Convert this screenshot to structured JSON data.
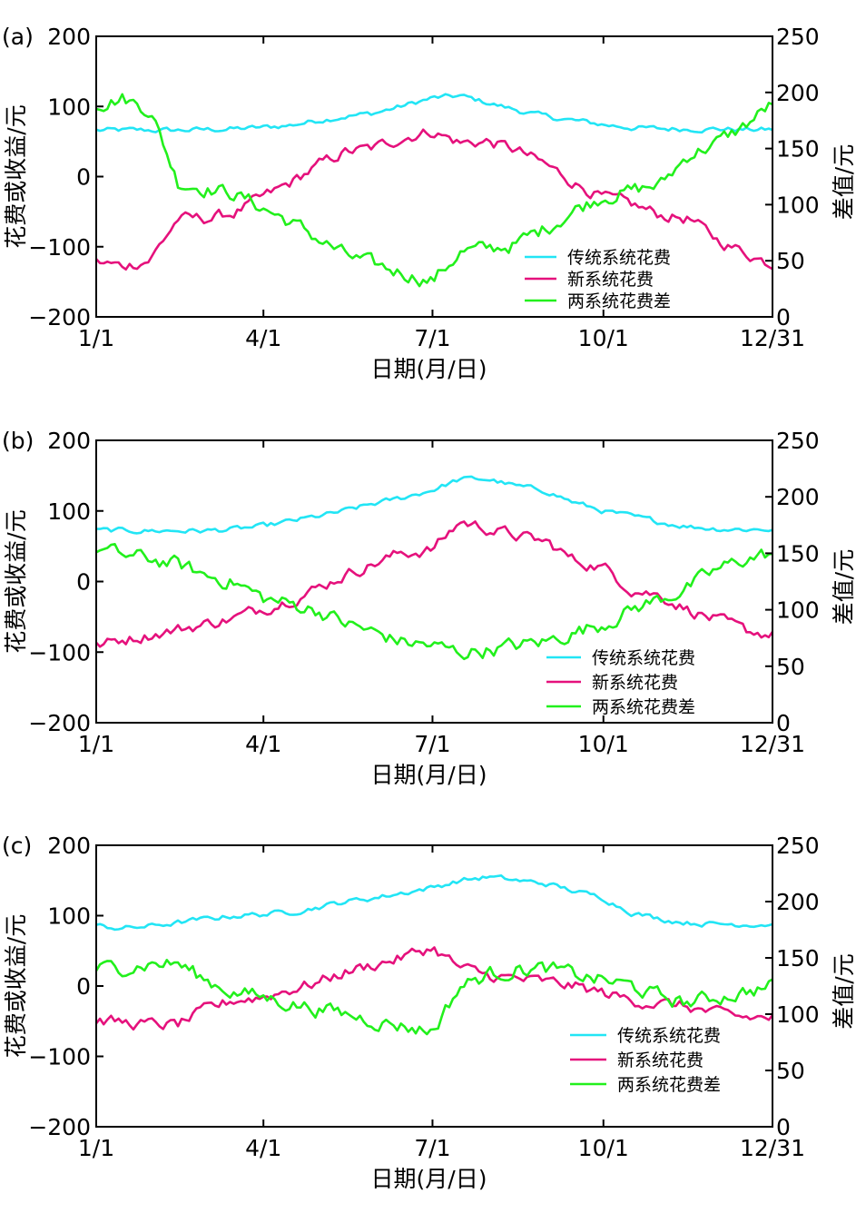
{
  "chart_data": [
    {
      "panel_label": "(a)",
      "type": "line",
      "x_ticks": [
        "1/1",
        "4/1",
        "7/1",
        "10/1",
        "12/31"
      ],
      "xlabel": "日期(月/日)",
      "ylabel_left": "花费或收益/元",
      "ylabel_right": "差值/元",
      "ylim_left": [
        -200,
        200
      ],
      "yticks_left": [
        -200,
        -100,
        0,
        100,
        200
      ],
      "ylim_right": [
        0,
        250
      ],
      "yticks_right": [
        0,
        50,
        100,
        150,
        200,
        250
      ],
      "legend_position": "lower-right",
      "x_days": [
        1,
        15,
        30,
        45,
        60,
        75,
        91,
        105,
        120,
        135,
        150,
        165,
        182,
        197,
        212,
        227,
        244,
        258,
        274,
        289,
        305,
        320,
        335,
        350,
        365
      ],
      "series": [
        {
          "name": "传统系统花费",
          "axis": "left",
          "color": "#22e5f5",
          "values": [
            66,
            66,
            66,
            66,
            67,
            68,
            70,
            73,
            80,
            86,
            90,
            100,
            112,
            115,
            105,
            95,
            85,
            80,
            74,
            70,
            68,
            68,
            68,
            67,
            67
          ]
        },
        {
          "name": "新系统花费",
          "axis": "left",
          "color": "#e5117c",
          "values": [
            -122,
            -128,
            -118,
            -60,
            -60,
            -52,
            -30,
            -10,
            15,
            35,
            40,
            55,
            65,
            48,
            50,
            38,
            15,
            -8,
            -30,
            -40,
            -55,
            -60,
            -90,
            -108,
            -125
          ]
        },
        {
          "name": "两系统花费差",
          "axis": "right",
          "color": "#22f01c",
          "values": [
            190,
            195,
            185,
            120,
            115,
            110,
            97,
            85,
            70,
            55,
            46,
            40,
            32,
            58,
            60,
            65,
            80,
            95,
            108,
            112,
            118,
            145,
            155,
            170,
            190
          ]
        }
      ]
    },
    {
      "panel_label": "(b)",
      "type": "line",
      "x_ticks": [
        "1/1",
        "4/1",
        "7/1",
        "10/1",
        "12/31"
      ],
      "xlabel": "日期(月/日)",
      "ylabel_left": "花费或收益/元",
      "ylabel_right": "差值/元",
      "ylim_left": [
        -200,
        200
      ],
      "yticks_left": [
        -200,
        -100,
        0,
        100,
        200
      ],
      "ylim_right": [
        0,
        250
      ],
      "yticks_right": [
        0,
        50,
        100,
        150,
        200,
        250
      ],
      "legend_position": "lower-right",
      "x_days": [
        1,
        15,
        30,
        45,
        60,
        75,
        91,
        105,
        120,
        135,
        150,
        165,
        182,
        197,
        212,
        227,
        244,
        258,
        274,
        289,
        305,
        320,
        335,
        350,
        365
      ],
      "series": [
        {
          "name": "传统系统花费",
          "axis": "left",
          "color": "#22e5f5",
          "values": [
            72,
            72,
            72,
            72,
            72,
            74,
            78,
            85,
            92,
            100,
            110,
            118,
            130,
            145,
            145,
            135,
            128,
            112,
            100,
            92,
            84,
            78,
            75,
            74,
            74
          ]
        },
        {
          "name": "新系统花费",
          "axis": "left",
          "color": "#e5117c",
          "values": [
            -92,
            -82,
            -75,
            -68,
            -60,
            -52,
            -38,
            -25,
            -10,
            10,
            25,
            40,
            45,
            85,
            75,
            65,
            55,
            30,
            20,
            -10,
            -20,
            -40,
            -55,
            -70,
            -75
          ]
        },
        {
          "name": "两系统花费差",
          "axis": "right",
          "color": "#22f01c",
          "values": [
            155,
            148,
            145,
            140,
            130,
            125,
            110,
            105,
            100,
            88,
            80,
            72,
            68,
            62,
            65,
            68,
            72,
            80,
            88,
            100,
            110,
            120,
            135,
            145,
            150
          ]
        }
      ]
    },
    {
      "panel_label": "(c)",
      "type": "line",
      "x_ticks": [
        "1/1",
        "4/1",
        "7/1",
        "10/1",
        "12/31"
      ],
      "xlabel": "日期(月/日)",
      "ylabel_left": "花费或收益/元",
      "ylabel_right": "差值/元",
      "ylim_left": [
        -200,
        200
      ],
      "yticks_left": [
        -200,
        -100,
        0,
        100,
        200
      ],
      "ylim_right": [
        0,
        250
      ],
      "yticks_right": [
        0,
        50,
        100,
        150,
        200,
        250
      ],
      "legend_position": "lower-right",
      "x_days": [
        1,
        15,
        30,
        45,
        60,
        75,
        91,
        105,
        120,
        135,
        150,
        165,
        182,
        197,
        212,
        227,
        244,
        258,
        274,
        289,
        305,
        320,
        335,
        350,
        365
      ],
      "series": [
        {
          "name": "传统系统花费",
          "axis": "left",
          "color": "#22e5f5",
          "values": [
            85,
            82,
            85,
            90,
            95,
            100,
            102,
            105,
            112,
            120,
            125,
            132,
            140,
            150,
            155,
            150,
            145,
            135,
            125,
            105,
            95,
            90,
            88,
            88,
            88
          ]
        },
        {
          "name": "新系统花费",
          "axis": "left",
          "color": "#e5117c",
          "values": [
            -48,
            -52,
            -55,
            -55,
            -35,
            -20,
            -15,
            -5,
            5,
            20,
            30,
            40,
            55,
            25,
            15,
            10,
            5,
            0,
            -10,
            -20,
            -25,
            -30,
            -40,
            -45,
            -45
          ]
        },
        {
          "name": "两系统花费差",
          "axis": "right",
          "color": "#22f01c",
          "values": [
            140,
            142,
            145,
            145,
            130,
            120,
            115,
            110,
            105,
            100,
            95,
            90,
            85,
            125,
            135,
            140,
            140,
            135,
            130,
            125,
            115,
            110,
            115,
            120,
            125
          ]
        }
      ]
    }
  ]
}
